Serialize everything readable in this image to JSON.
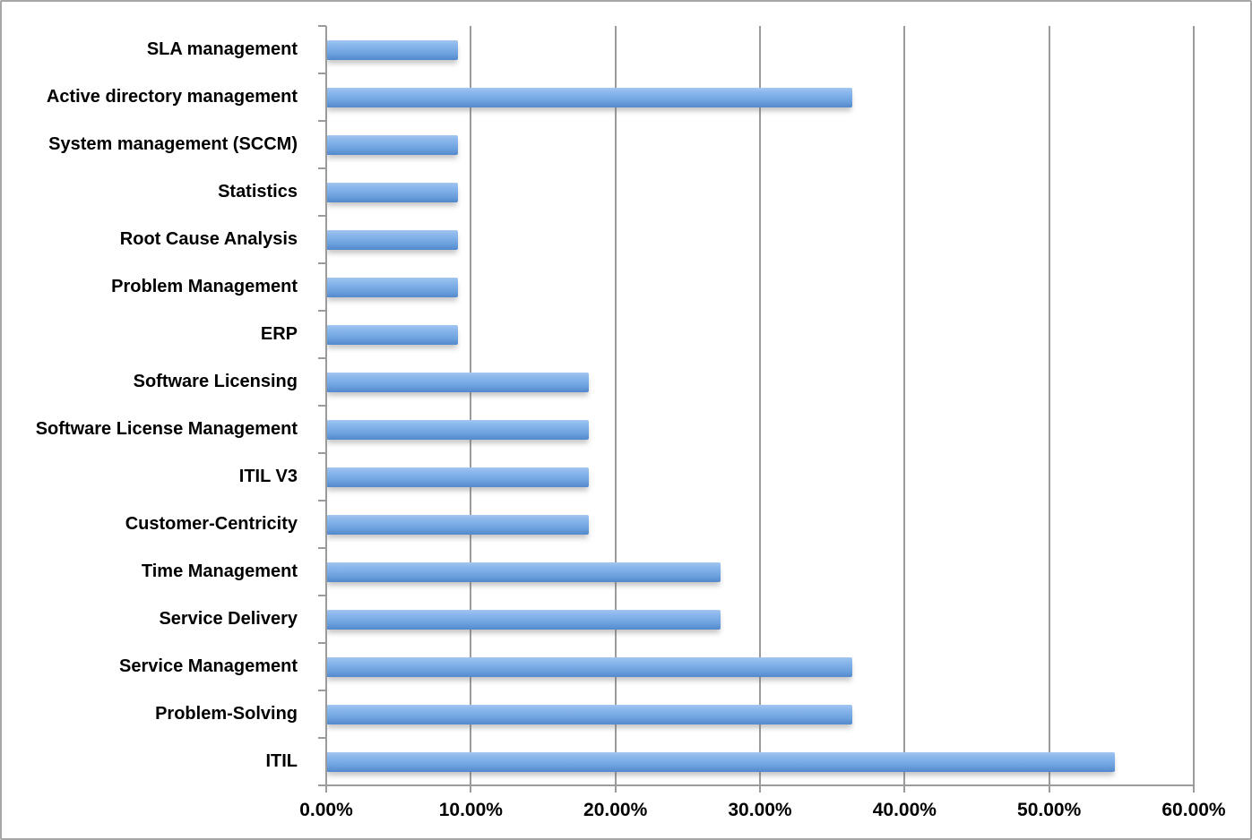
{
  "chart_data": {
    "type": "bar",
    "orientation": "horizontal",
    "title": "",
    "xlabel": "",
    "ylabel": "",
    "categories": [
      "SLA management",
      "Active directory management",
      "System management (SCCM)",
      "Statistics",
      "Root Cause Analysis",
      "Problem Management",
      "ERP",
      "Software Licensing",
      "Software License Management",
      "ITIL V3",
      "Customer-Centricity",
      "Time Management",
      "Service Delivery",
      "Service Management",
      "Problem-Solving",
      "ITIL"
    ],
    "values": [
      9.09,
      36.36,
      9.09,
      9.09,
      9.09,
      9.09,
      9.09,
      18.18,
      18.18,
      18.18,
      18.18,
      27.27,
      27.27,
      36.36,
      36.36,
      54.55
    ],
    "value_unit": "%",
    "xlim": [
      0,
      60
    ],
    "x_tick_values": [
      0,
      10,
      20,
      30,
      40,
      50,
      60
    ],
    "x_tick_labels": [
      "0.00%",
      "10.00%",
      "20.00%",
      "30.00%",
      "40.00%",
      "50.00%",
      "60.00%"
    ],
    "grid": "vertical",
    "legend": "none",
    "colors": {
      "bar_top": "#a2c6f1",
      "bar_mid": "#7fb0e8",
      "bar_bottom": "#5289cc",
      "gridline": "#9b9b9b",
      "axis": "#9b9b9b",
      "text": "#000000",
      "background": "#ffffff",
      "outer_border": "#a6a6a6"
    }
  }
}
